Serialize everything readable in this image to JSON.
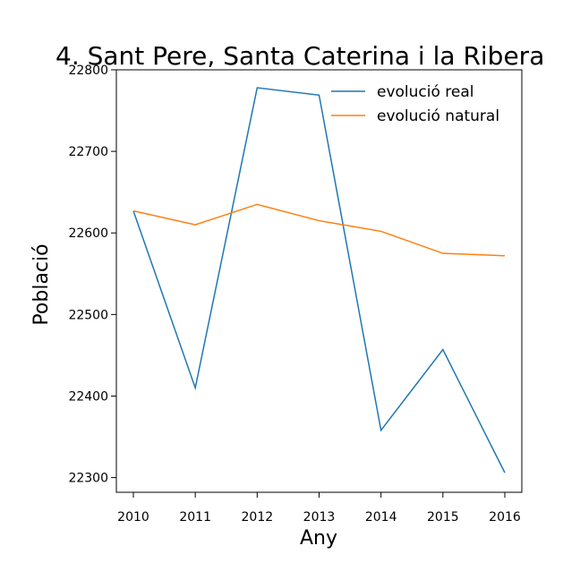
{
  "chart_data": {
    "type": "line",
    "title": "4. Sant Pere, Santa Caterina i la Ribera",
    "xlabel": "Any",
    "ylabel": "Població",
    "x": [
      2010,
      2011,
      2012,
      2013,
      2014,
      2015,
      2016
    ],
    "x_tick_labels": [
      "2010",
      "2011",
      "2012",
      "2013",
      "2014",
      "2015",
      "2016"
    ],
    "ylim": [
      22282,
      22800
    ],
    "y_ticks": [
      22300,
      22400,
      22500,
      22600,
      22700,
      22800
    ],
    "y_tick_labels": [
      "22300",
      "22400",
      "22500",
      "22600",
      "22700",
      "22800"
    ],
    "grid": false,
    "legend_position": "top-right",
    "series": [
      {
        "name": "evolució real",
        "color": "#1f77b4",
        "values": [
          22627,
          22410,
          22778,
          22769,
          22358,
          22457,
          22306
        ]
      },
      {
        "name": "evolució natural",
        "color": "#ff7f0e",
        "values": [
          22627,
          22610,
          22635,
          22615,
          22602,
          22575,
          22572
        ]
      }
    ]
  }
}
